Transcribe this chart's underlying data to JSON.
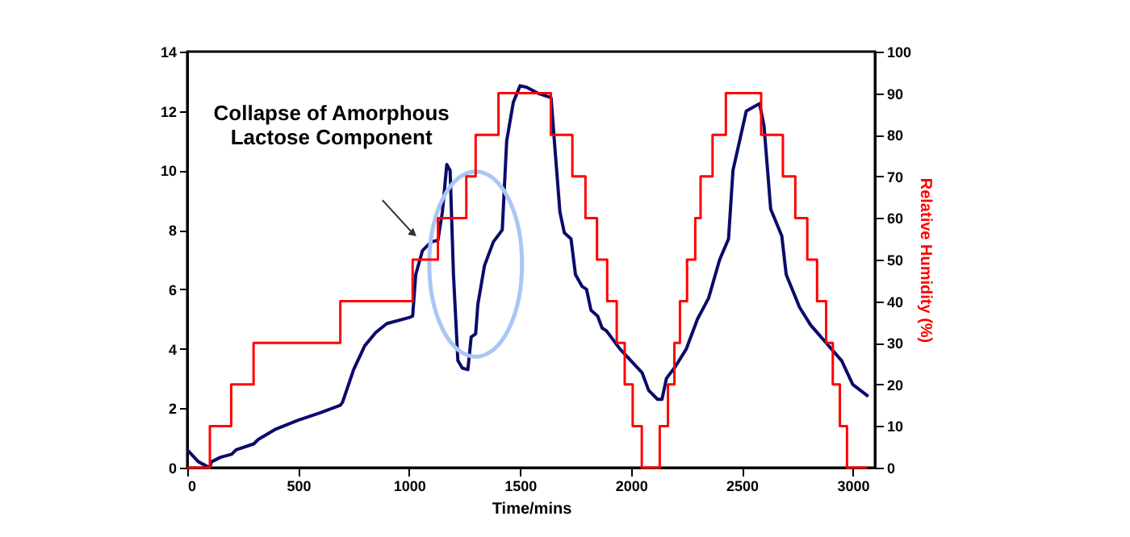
{
  "chart_data": {
    "type": "line",
    "xlabel": "Time/mins",
    "y2label": "Relative Humidity (%)",
    "annotations": [
      "Collapse of Amorphous\nLactose Component"
    ],
    "xlim": [
      0,
      3100
    ],
    "xticks": [
      0,
      500,
      1000,
      1500,
      2000,
      2500,
      3000
    ],
    "ylim": [
      0,
      14
    ],
    "yticks": [
      0,
      2,
      4,
      6,
      8,
      10,
      12,
      14
    ],
    "y2lim": [
      0,
      100
    ],
    "y2ticks": [
      0,
      10,
      20,
      30,
      40,
      50,
      60,
      70,
      80,
      90,
      100
    ],
    "grid": false,
    "series": [
      {
        "color": "#0b0b6b",
        "x": [
          0,
          50,
          100,
          110,
          150,
          200,
          220,
          300,
          320,
          400,
          500,
          600,
          690,
          700,
          750,
          800,
          850,
          900,
          1000,
          1016,
          1030,
          1060,
          1100,
          1130,
          1150,
          1170,
          1185,
          1200,
          1220,
          1240,
          1265,
          1280,
          1300,
          1310,
          1340,
          1380,
          1410,
          1420,
          1440,
          1470,
          1500,
          1530,
          1580,
          1640,
          1660,
          1680,
          1700,
          1730,
          1750,
          1780,
          1800,
          1820,
          1850,
          1870,
          1890,
          1900,
          1950,
          2000,
          2050,
          2080,
          2120,
          2140,
          2160,
          2200,
          2250,
          2300,
          2350,
          2400,
          2440,
          2460,
          2520,
          2580,
          2600,
          2630,
          2680,
          2700,
          2760,
          2810,
          2880,
          2950,
          3000,
          3070
        ],
        "values": [
          0.6,
          0.2,
          0.0,
          0.2,
          0.35,
          0.45,
          0.6,
          0.8,
          0.95,
          1.3,
          1.6,
          1.85,
          2.1,
          2.2,
          3.3,
          4.1,
          4.55,
          4.85,
          5.05,
          5.1,
          6.5,
          7.3,
          7.6,
          7.65,
          8.6,
          10.2,
          10.0,
          6.5,
          3.6,
          3.35,
          3.3,
          4.4,
          4.5,
          5.5,
          6.8,
          7.6,
          7.9,
          8.0,
          11.0,
          12.3,
          12.85,
          12.8,
          12.6,
          12.45,
          10.5,
          8.6,
          7.9,
          7.7,
          6.5,
          6.1,
          6.0,
          5.3,
          5.1,
          4.7,
          4.6,
          4.5,
          4.0,
          3.6,
          3.2,
          2.6,
          2.3,
          2.3,
          3.0,
          3.4,
          4.0,
          5.0,
          5.7,
          7.0,
          7.7,
          10.0,
          12.0,
          12.25,
          11.5,
          8.7,
          7.8,
          6.5,
          5.4,
          4.8,
          4.2,
          3.6,
          2.8,
          2.4
        ]
      },
      {
        "type": "step",
        "axis": "y2",
        "color": "#ff0000",
        "x": [
          0,
          102,
          198,
          299,
          690,
          1016,
          1130,
          1258,
          1300,
          1403,
          1639,
          1736,
          1795,
          1847,
          1893,
          1936,
          1972,
          2008,
          2049,
          2130,
          2167,
          2196,
          2221,
          2253,
          2290,
          2314,
          2368,
          2428,
          2587,
          2685,
          2741,
          2795,
          2839,
          2880,
          2910,
          2942,
          2974,
          3065
        ],
        "values": [
          0,
          10,
          20,
          30,
          40,
          50,
          60,
          70,
          80,
          90,
          80,
          70,
          60,
          50,
          40,
          30,
          20,
          10,
          0,
          10,
          20,
          30,
          40,
          50,
          60,
          70,
          80,
          90,
          80,
          70,
          60,
          50,
          40,
          30,
          20,
          10,
          0,
          0
        ]
      }
    ]
  }
}
